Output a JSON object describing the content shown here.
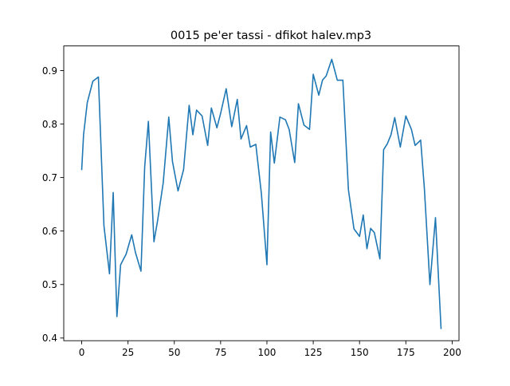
{
  "chart_data": {
    "type": "line",
    "title": "0015 pe'er tassi - dfikot halev.mp3",
    "xlabel": "",
    "ylabel": "",
    "xlim": [
      -9.7,
      203.7
    ],
    "ylim": [
      0.395,
      0.946
    ],
    "xticks": [
      0,
      25,
      50,
      75,
      100,
      125,
      150,
      175,
      200
    ],
    "yticks": [
      0.4,
      0.5,
      0.6,
      0.7,
      0.8,
      0.9
    ],
    "xtick_labels": [
      "0",
      "25",
      "50",
      "75",
      "100",
      "125",
      "150",
      "175",
      "200"
    ],
    "ytick_labels": [
      "0.4",
      "0.5",
      "0.6",
      "0.7",
      "0.8",
      "0.9"
    ],
    "grid": false,
    "legend": "none",
    "series": [
      {
        "color": "#1f77b4",
        "x": [
          0,
          1,
          3,
          6,
          9,
          12,
          15,
          17,
          19,
          21,
          24,
          27,
          29,
          32,
          34,
          36,
          39,
          41,
          44,
          47,
          49,
          52,
          55,
          58,
          60,
          62,
          65,
          68,
          70,
          73,
          75,
          78,
          81,
          84,
          86,
          89,
          91,
          94,
          97,
          100,
          102,
          104,
          107,
          110,
          112,
          115,
          117,
          120,
          123,
          125,
          128,
          130,
          132,
          135,
          138,
          141,
          144,
          147,
          150,
          152,
          154,
          156,
          158,
          161,
          163,
          165,
          167,
          169,
          172,
          175,
          178,
          180,
          183,
          185,
          188,
          191,
          194
        ],
        "y": [
          0.715,
          0.78,
          0.84,
          0.88,
          0.888,
          0.61,
          0.52,
          0.672,
          0.44,
          0.537,
          0.557,
          0.593,
          0.56,
          0.525,
          0.72,
          0.805,
          0.58,
          0.62,
          0.69,
          0.813,
          0.73,
          0.675,
          0.715,
          0.835,
          0.78,
          0.826,
          0.815,
          0.76,
          0.83,
          0.793,
          0.82,
          0.866,
          0.795,
          0.846,
          0.772,
          0.797,
          0.757,
          0.762,
          0.67,
          0.537,
          0.785,
          0.727,
          0.813,
          0.808,
          0.79,
          0.728,
          0.838,
          0.798,
          0.79,
          0.893,
          0.854,
          0.882,
          0.89,
          0.921,
          0.882,
          0.882,
          0.677,
          0.604,
          0.59,
          0.63,
          0.567,
          0.605,
          0.597,
          0.548,
          0.752,
          0.763,
          0.78,
          0.812,
          0.757,
          0.815,
          0.79,
          0.76,
          0.77,
          0.68,
          0.5,
          0.625,
          0.418
        ]
      }
    ]
  }
}
